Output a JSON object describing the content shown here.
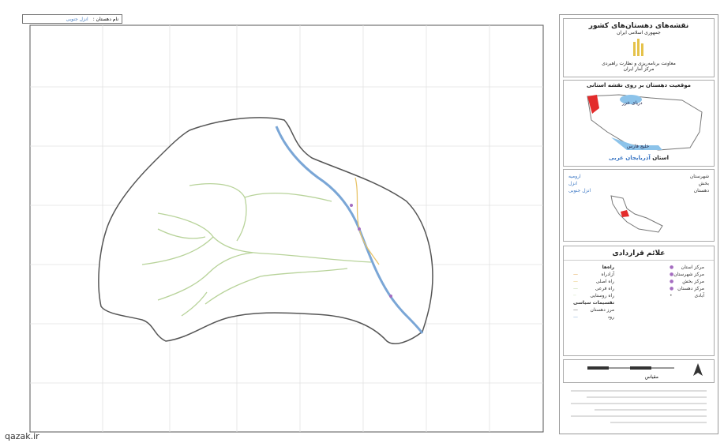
{
  "header": {
    "label": "نام دهستان :",
    "value": "انزل جنوبی"
  },
  "watermark": "qazak.ir",
  "panel": {
    "title": "نقشه‌های دهستان‌های کشور",
    "subtitle": "جمهوری اسلامی ایران",
    "org": [
      "معاونت برنامه‌ریزی و نظارت راهبردی",
      "مرکز آمار ایران"
    ],
    "location_title": "موقعیت دهستان بر روی نقشه استانی",
    "sea_north": "دریای خزر",
    "sea_south": "خلیج فارس",
    "province_label": "استان",
    "province": "آذربایجان غربی",
    "admin": [
      {
        "label": "شهرستان",
        "value": "ارومیه"
      },
      {
        "label": "بخش",
        "value": "انزل"
      },
      {
        "label": "دهستان",
        "value": "انزل جنوبی"
      }
    ],
    "legend_title": "علائم قراردادی",
    "legend_items": [
      "مرکز استان",
      "مرکز شهرستان",
      "مرکز بخش",
      "مرکز دهستان",
      "آبادی"
    ],
    "roads_title": "راه‌ها",
    "road_items": [
      "آزادراه",
      "راه اصلی",
      "راه فرعی",
      "راه روستایی"
    ],
    "boundaries_title": "تقسیمات سیاسی",
    "boundary_items": [
      "مرز دهستان",
      "رود"
    ],
    "scale_label": "مقیاس"
  }
}
